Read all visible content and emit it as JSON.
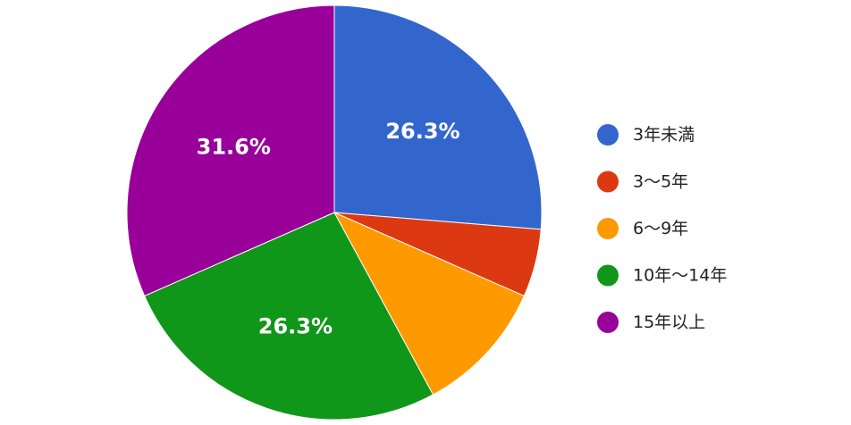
{
  "chart_data": {
    "type": "pie",
    "title": "",
    "legend_position": "right",
    "slices": [
      {
        "label": "3年未満",
        "value": 26.3,
        "display": "26.3%",
        "color": "#3366cc"
      },
      {
        "label": "3〜5年",
        "value": 5.3,
        "display": "",
        "color": "#dc3912"
      },
      {
        "label": "6〜9年",
        "value": 10.5,
        "display": "",
        "color": "#ff9900"
      },
      {
        "label": "10年〜14年",
        "value": 26.3,
        "display": "26.3%",
        "color": "#109618"
      },
      {
        "label": "15年以上",
        "value": 31.6,
        "display": "31.6%",
        "color": "#990099"
      }
    ]
  }
}
